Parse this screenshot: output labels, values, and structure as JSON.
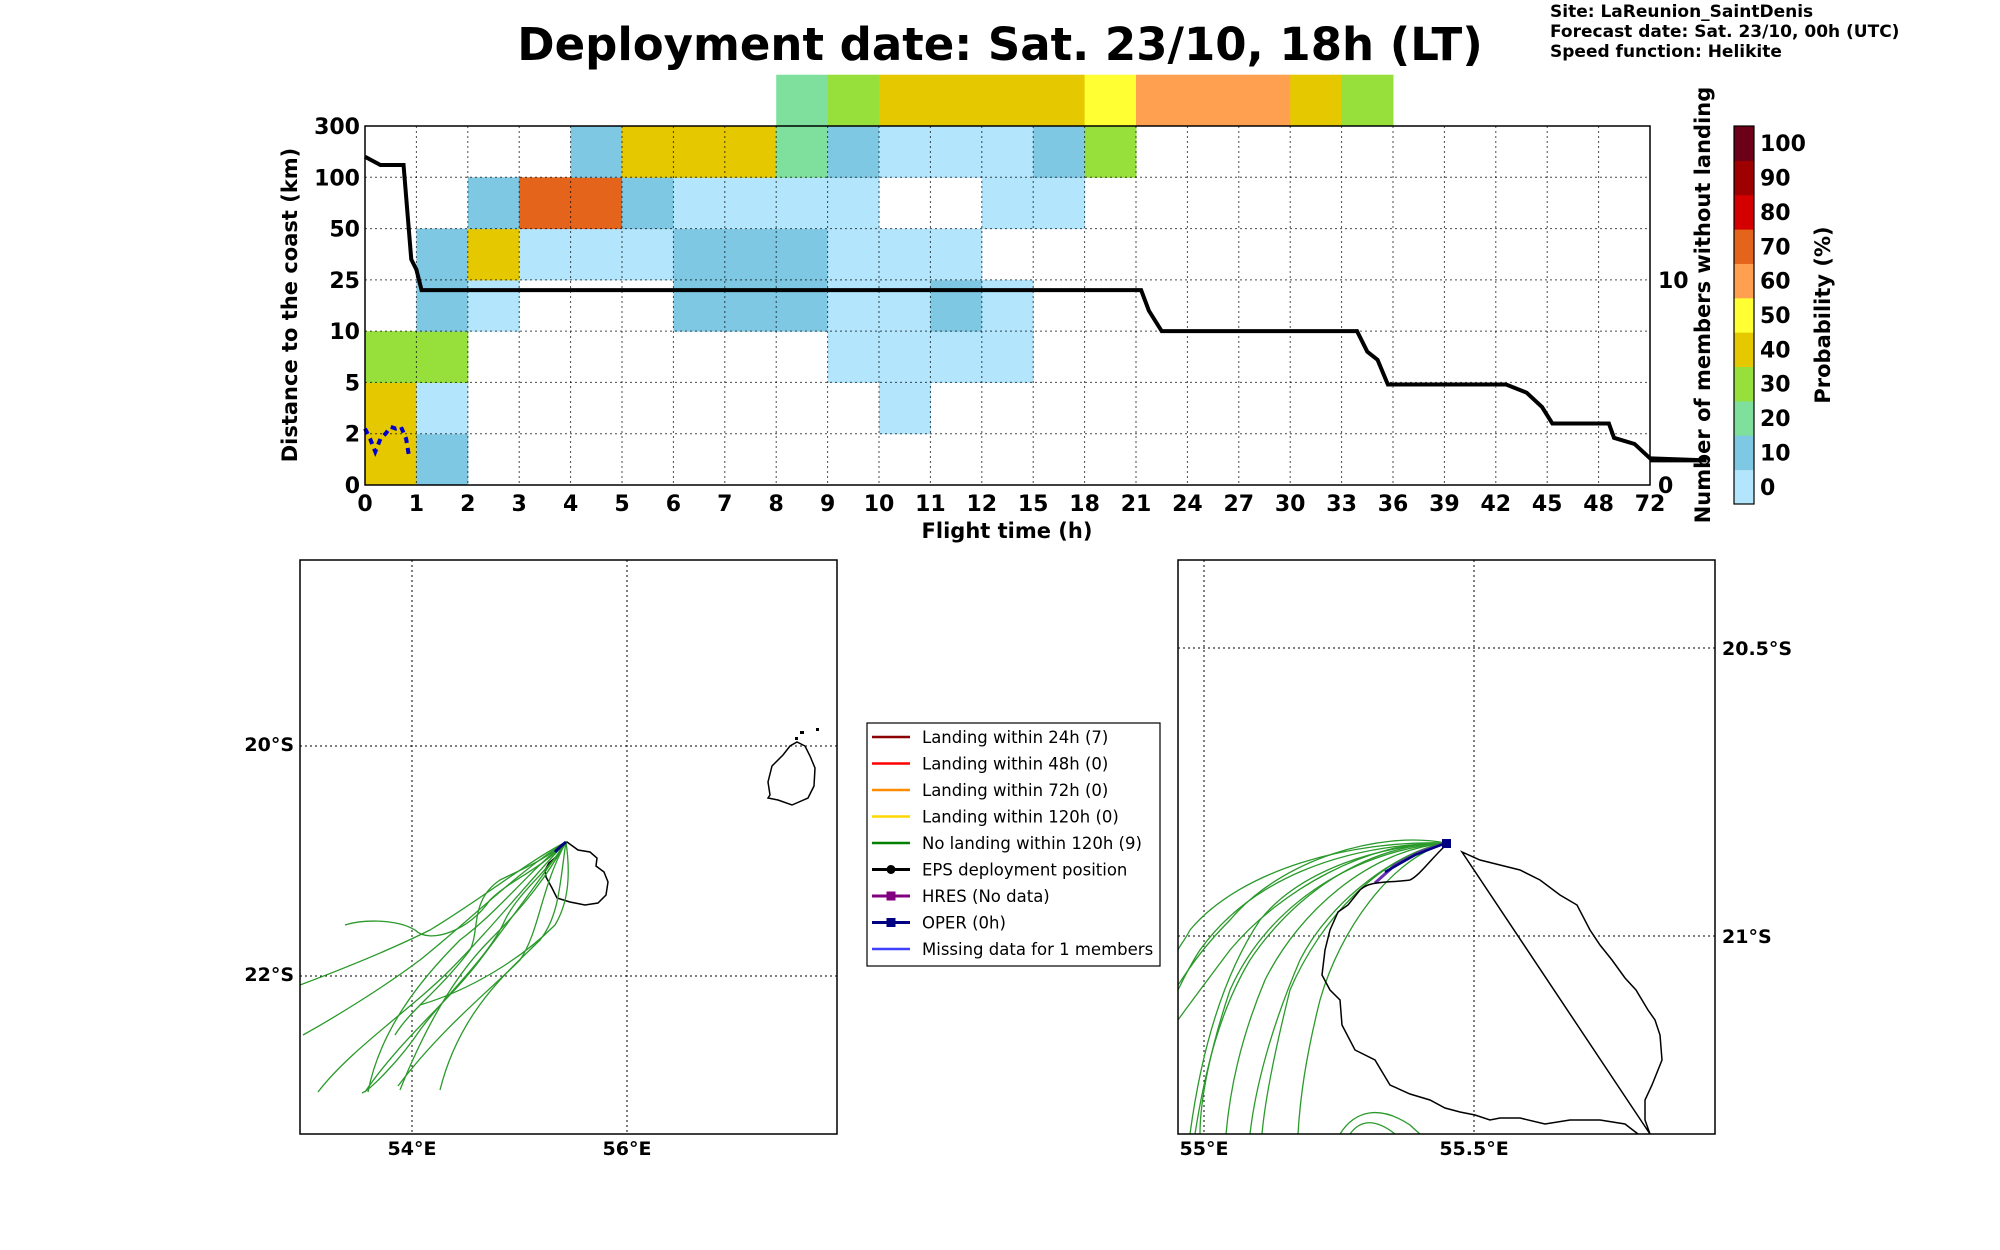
{
  "header": {
    "title": "Deployment date: Sat. 23/10, 18h (LT)",
    "site": "Site: LaReunion_SaintDenis",
    "forecast": "Forecast date: Sat. 23/10, 00h (UTC)",
    "speed": "Speed function: Helikite"
  },
  "colors": {
    "scale": [
      "#b3e5fc",
      "#7ec8e3",
      "#7ee09c",
      "#97e03c",
      "#e5c800",
      "#ffff33",
      "#ff9f50",
      "#e5641c",
      "#d40000",
      "#9e0000",
      "#6b0018"
    ],
    "track_line": "#000000",
    "no_landing": "#2a9a2a",
    "coast": "#000000",
    "oper": "#000080",
    "missing": "#4040ff"
  },
  "chart_data": [
    {
      "type": "heatmap",
      "xlabel": "Flight time (h)",
      "ylabel": "Distance to the coast (km)",
      "y2label": "Number of members without landing",
      "x_ticks": [
        "0",
        "1",
        "2",
        "3",
        "4",
        "5",
        "6",
        "7",
        "8",
        "9",
        "10",
        "11",
        "12",
        "15",
        "18",
        "21",
        "24",
        "27",
        "30",
        "33",
        "36",
        "39",
        "42",
        "45",
        "48",
        "72"
      ],
      "y_ticks": [
        "0",
        "2",
        "5",
        "10",
        "25",
        "50",
        "100",
        "300"
      ],
      "y2_ticks": [
        "0",
        "10"
      ],
      "y2_range": [
        0,
        17.5
      ],
      "cells": [
        [
          0,
          0,
          4
        ],
        [
          0,
          1,
          4
        ],
        [
          0,
          2,
          3
        ],
        [
          1,
          0,
          1
        ],
        [
          1,
          1,
          0
        ],
        [
          1,
          2,
          3
        ],
        [
          1,
          3,
          1
        ],
        [
          1,
          4,
          1
        ],
        [
          2,
          3,
          0
        ],
        [
          2,
          4,
          4
        ],
        [
          2,
          5,
          1
        ],
        [
          3,
          4,
          0
        ],
        [
          3,
          5,
          7
        ],
        [
          4,
          4,
          0
        ],
        [
          4,
          5,
          7
        ],
        [
          4,
          6,
          1
        ],
        [
          5,
          4,
          0
        ],
        [
          5,
          5,
          1
        ],
        [
          5,
          6,
          4
        ],
        [
          6,
          3,
          1
        ],
        [
          6,
          4,
          1
        ],
        [
          6,
          5,
          0
        ],
        [
          6,
          6,
          4
        ],
        [
          7,
          3,
          1
        ],
        [
          7,
          4,
          1
        ],
        [
          7,
          5,
          0
        ],
        [
          7,
          6,
          4
        ],
        [
          8,
          3,
          1
        ],
        [
          8,
          4,
          1
        ],
        [
          8,
          5,
          0
        ],
        [
          8,
          6,
          2
        ],
        [
          8,
          7,
          2
        ],
        [
          9,
          2,
          0
        ],
        [
          9,
          3,
          0
        ],
        [
          9,
          4,
          0
        ],
        [
          9,
          5,
          0
        ],
        [
          9,
          6,
          1
        ],
        [
          9,
          7,
          3
        ],
        [
          10,
          1,
          0
        ],
        [
          10,
          2,
          0
        ],
        [
          10,
          3,
          0
        ],
        [
          10,
          4,
          0
        ],
        [
          10,
          6,
          0
        ],
        [
          10,
          7,
          4
        ],
        [
          11,
          2,
          0
        ],
        [
          11,
          3,
          1
        ],
        [
          11,
          4,
          0
        ],
        [
          11,
          6,
          0
        ],
        [
          11,
          7,
          4
        ],
        [
          12,
          2,
          0
        ],
        [
          12,
          3,
          0
        ],
        [
          12,
          5,
          0
        ],
        [
          12,
          6,
          0
        ],
        [
          12,
          7,
          4
        ],
        [
          13,
          5,
          0
        ],
        [
          13,
          6,
          1
        ],
        [
          13,
          7,
          4
        ],
        [
          14,
          6,
          3
        ],
        [
          14,
          7,
          5
        ],
        [
          15,
          7,
          6
        ],
        [
          16,
          7,
          6
        ],
        [
          17,
          7,
          6
        ],
        [
          18,
          7,
          4
        ],
        [
          19,
          7,
          3
        ]
      ],
      "members_without_landing": [
        [
          0,
          16
        ],
        [
          0.3,
          15.6
        ],
        [
          0.75,
          15.6
        ],
        [
          0.9,
          11
        ],
        [
          1,
          10.5
        ],
        [
          1.1,
          9.5
        ],
        [
          15.1,
          9.5
        ],
        [
          15.25,
          8.5
        ],
        [
          15.5,
          7.5
        ],
        [
          19.3,
          7.5
        ],
        [
          19.5,
          6.5
        ],
        [
          19.7,
          6.1
        ],
        [
          19.9,
          4.9
        ],
        [
          22.2,
          4.9
        ],
        [
          22.6,
          4.5
        ],
        [
          22.9,
          3.8
        ],
        [
          23.1,
          3.0
        ],
        [
          23.3,
          3.0
        ],
        [
          24.2,
          3.0
        ],
        [
          24.3,
          2.3
        ],
        [
          24.7,
          2.0
        ],
        [
          25,
          1.3
        ],
        [
          26.1,
          1.2
        ]
      ],
      "oper_distance": [
        [
          0,
          2.3
        ],
        [
          0.1,
          1.8
        ],
        [
          0.2,
          1.3
        ],
        [
          0.3,
          1.8
        ],
        [
          0.4,
          2.0
        ],
        [
          0.5,
          2.4
        ],
        [
          0.6,
          2.3
        ],
        [
          0.7,
          2.4
        ],
        [
          0.8,
          1.8
        ],
        [
          0.85,
          1.2
        ]
      ]
    },
    {
      "type": "map",
      "x_ticks": [
        "54°E",
        "56°E"
      ],
      "y_ticks": [
        "20°S",
        "22°S"
      ],
      "xlim": [
        53,
        58
      ],
      "ylim": [
        -23.4,
        -18.4
      ]
    },
    {
      "type": "map",
      "x_ticks": [
        "55°E",
        "55.5°E"
      ],
      "y_ticks": [
        "20.5°S",
        "21°S"
      ],
      "xlim": [
        54.95,
        55.95
      ],
      "ylim": [
        -21.35,
        -20.35
      ]
    }
  ],
  "colorbar": {
    "label": "Probability (%)",
    "ticks": [
      "0",
      "10",
      "20",
      "30",
      "40",
      "50",
      "60",
      "70",
      "80",
      "90",
      "100"
    ]
  },
  "legend": {
    "items": [
      {
        "label": "Landing within 24h (7)",
        "color": "#8b0000",
        "marker": "none"
      },
      {
        "label": "Landing within 48h (0)",
        "color": "#ff0000",
        "marker": "none"
      },
      {
        "label": "Landing within 72h (0)",
        "color": "#ff8c00",
        "marker": "none"
      },
      {
        "label": "Landing within 120h (0)",
        "color": "#ffd700",
        "marker": "none"
      },
      {
        "label": "No landing within 120h (9)",
        "color": "#008000",
        "marker": "none"
      },
      {
        "label": "EPS deployment position",
        "color": "#000000",
        "marker": "circle"
      },
      {
        "label": "HRES (No data)",
        "color": "#800080",
        "marker": "square"
      },
      {
        "label": "OPER (0h)",
        "color": "#000080",
        "marker": "square"
      },
      {
        "label": "Missing data for 1 members",
        "color": "#4040ff",
        "marker": "none"
      }
    ]
  }
}
